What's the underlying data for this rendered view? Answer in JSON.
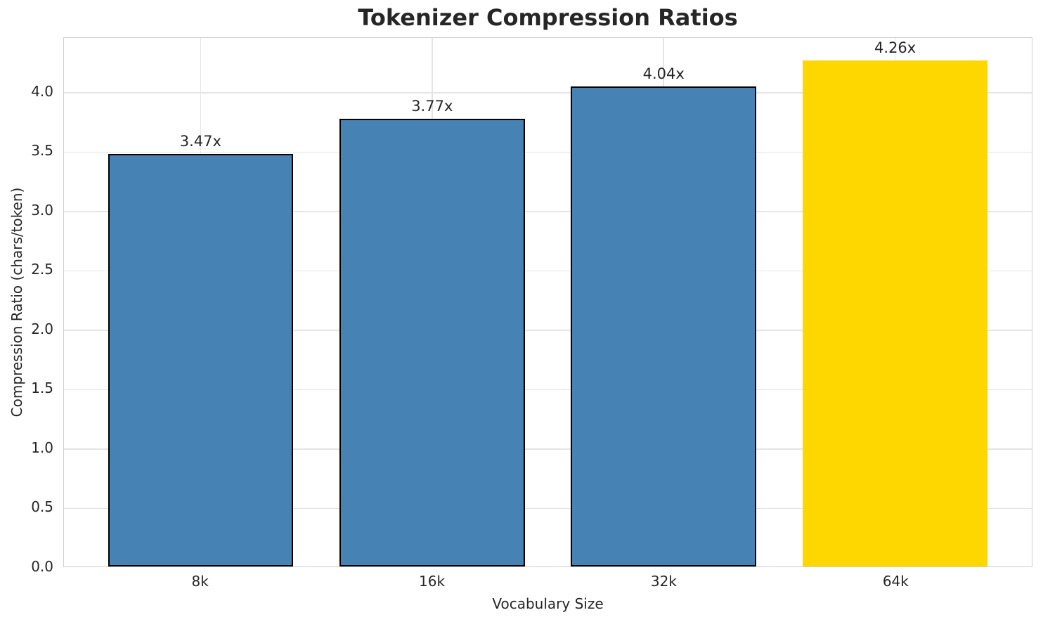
{
  "chart_data": {
    "type": "bar",
    "title": "Tokenizer Compression Ratios",
    "xlabel": "Vocabulary Size",
    "ylabel": "Compression Ratio (chars/token)",
    "categories": [
      "8k",
      "16k",
      "32k",
      "64k"
    ],
    "values": [
      3.47,
      3.77,
      4.04,
      4.26
    ],
    "bar_labels": [
      "3.47x",
      "3.77x",
      "4.04x",
      "4.26x"
    ],
    "bar_colors": [
      "#4682B4",
      "#4682B4",
      "#4682B4",
      "#FFD700"
    ],
    "bar_edge_colors": [
      "#000000",
      "#000000",
      "#000000",
      "none"
    ],
    "highlight_index": 3,
    "ylim": [
      0,
      4.46
    ],
    "yticks": [
      0.0,
      0.5,
      1.0,
      1.5,
      2.0,
      2.5,
      3.0,
      3.5,
      4.0
    ],
    "ytick_labels": [
      "0.0",
      "0.5",
      "1.0",
      "1.5",
      "2.0",
      "2.5",
      "3.0",
      "3.5",
      "4.0"
    ],
    "grid": true,
    "legend": "none"
  },
  "colors": {
    "bar_default": "#4682B4",
    "bar_highlight": "#FFD700",
    "bar_edge": "#000000",
    "grid": "#e4e4e4",
    "spine": "#cdcdcd",
    "text": "#262626",
    "background": "#ffffff"
  }
}
